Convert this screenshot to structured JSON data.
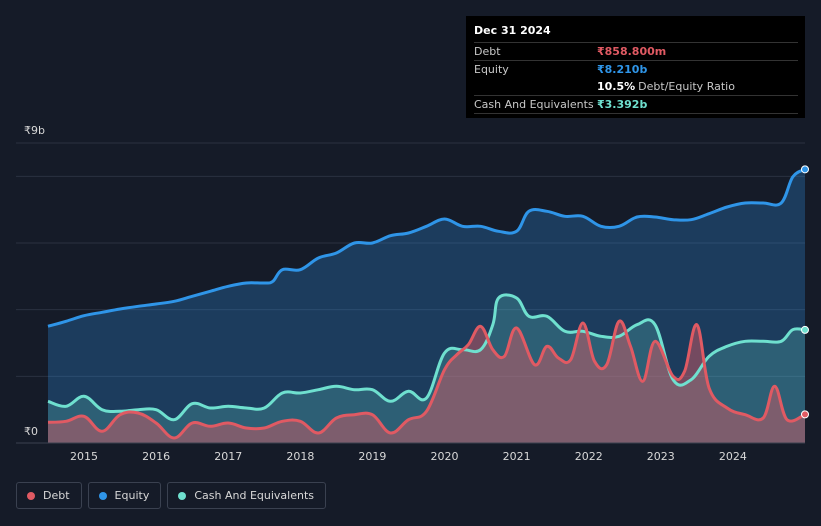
{
  "tooltip": {
    "date": "Dec 31 2024",
    "debt_label": "Debt",
    "debt_value": "₹858.800m",
    "equity_label": "Equity",
    "equity_value": "₹8.210b",
    "ratio_value": "10.5%",
    "ratio_label": "Debt/Equity Ratio",
    "cash_label": "Cash And Equivalents",
    "cash_value": "₹3.392b"
  },
  "legend": {
    "debt": "Debt",
    "equity": "Equity",
    "cash": "Cash And Equivalents"
  },
  "colors": {
    "debt": "#e05a63",
    "equity": "#2f95e8",
    "cash": "#6fe0cf",
    "background": "#151b28"
  },
  "chart_data": {
    "type": "area",
    "y_top_label": "₹9b",
    "y_bottom_label": "₹0",
    "ylim": [
      0,
      9
    ],
    "xlim": [
      2014.5,
      2025.0
    ],
    "x_ticks": [
      "2015",
      "2016",
      "2017",
      "2018",
      "2019",
      "2020",
      "2021",
      "2022",
      "2023",
      "2024"
    ],
    "grid": true,
    "series": [
      {
        "name": "Equity",
        "x": [
          2014.5,
          2014.75,
          2015.0,
          2015.25,
          2015.5,
          2015.75,
          2016.0,
          2016.25,
          2016.5,
          2016.75,
          2017.0,
          2017.25,
          2017.5,
          2017.62,
          2017.75,
          2018.0,
          2018.25,
          2018.5,
          2018.75,
          2019.0,
          2019.25,
          2019.5,
          2019.75,
          2020.0,
          2020.25,
          2020.5,
          2020.75,
          2021.0,
          2021.17,
          2021.42,
          2021.67,
          2021.92,
          2022.17,
          2022.42,
          2022.67,
          2022.92,
          2023.17,
          2023.42,
          2023.67,
          2023.92,
          2024.17,
          2024.42,
          2024.67,
          2024.83,
          2025.0
        ],
        "values": [
          3.5,
          3.65,
          3.82,
          3.92,
          4.02,
          4.1,
          4.17,
          4.25,
          4.4,
          4.55,
          4.7,
          4.8,
          4.8,
          4.85,
          5.2,
          5.2,
          5.55,
          5.7,
          6.0,
          6.0,
          6.22,
          6.3,
          6.5,
          6.72,
          6.5,
          6.5,
          6.35,
          6.35,
          6.95,
          6.95,
          6.8,
          6.8,
          6.5,
          6.5,
          6.78,
          6.78,
          6.7,
          6.7,
          6.88,
          7.08,
          7.2,
          7.2,
          7.2,
          7.98,
          8.21
        ]
      },
      {
        "name": "Cash And Equivalents",
        "x": [
          2014.5,
          2014.75,
          2015.0,
          2015.25,
          2015.5,
          2015.75,
          2016.0,
          2016.25,
          2016.5,
          2016.75,
          2017.0,
          2017.25,
          2017.5,
          2017.75,
          2018.0,
          2018.25,
          2018.5,
          2018.75,
          2019.0,
          2019.25,
          2019.5,
          2019.75,
          2020.0,
          2020.25,
          2020.5,
          2020.67,
          2020.75,
          2021.0,
          2021.17,
          2021.42,
          2021.67,
          2021.92,
          2022.17,
          2022.42,
          2022.67,
          2022.92,
          2023.17,
          2023.42,
          2023.67,
          2023.92,
          2024.17,
          2024.42,
          2024.67,
          2024.83,
          2025.0
        ],
        "values": [
          1.25,
          1.1,
          1.4,
          1.0,
          0.95,
          1.0,
          1.0,
          0.7,
          1.18,
          1.05,
          1.1,
          1.05,
          1.05,
          1.5,
          1.5,
          1.6,
          1.7,
          1.6,
          1.6,
          1.25,
          1.55,
          1.35,
          2.7,
          2.8,
          2.8,
          3.55,
          4.35,
          4.35,
          3.8,
          3.8,
          3.35,
          3.35,
          3.2,
          3.2,
          3.55,
          3.55,
          1.9,
          1.9,
          2.6,
          2.9,
          3.05,
          3.05,
          3.05,
          3.4,
          3.392
        ]
      },
      {
        "name": "Debt",
        "x": [
          2014.5,
          2014.75,
          2015.0,
          2015.25,
          2015.5,
          2015.75,
          2016.0,
          2016.25,
          2016.5,
          2016.75,
          2017.0,
          2017.25,
          2017.5,
          2017.75,
          2018.0,
          2018.25,
          2018.5,
          2018.75,
          2019.0,
          2019.25,
          2019.5,
          2019.75,
          2020.0,
          2020.17,
          2020.33,
          2020.5,
          2020.67,
          2020.83,
          2021.0,
          2021.25,
          2021.42,
          2021.58,
          2021.75,
          2021.92,
          2022.08,
          2022.25,
          2022.42,
          2022.58,
          2022.75,
          2022.92,
          2023.17,
          2023.33,
          2023.5,
          2023.67,
          2023.92,
          2024.17,
          2024.42,
          2024.58,
          2024.75,
          2025.0
        ],
        "values": [
          0.62,
          0.65,
          0.8,
          0.35,
          0.85,
          0.9,
          0.6,
          0.15,
          0.6,
          0.5,
          0.6,
          0.45,
          0.45,
          0.65,
          0.65,
          0.3,
          0.75,
          0.85,
          0.85,
          0.3,
          0.7,
          0.95,
          2.2,
          2.65,
          2.95,
          3.5,
          2.8,
          2.6,
          3.45,
          2.35,
          2.9,
          2.55,
          2.5,
          3.6,
          2.45,
          2.35,
          3.65,
          2.9,
          1.85,
          3.05,
          2.0,
          2.15,
          3.55,
          1.65,
          1.05,
          0.85,
          0.75,
          1.7,
          0.7,
          0.859
        ]
      }
    ]
  }
}
